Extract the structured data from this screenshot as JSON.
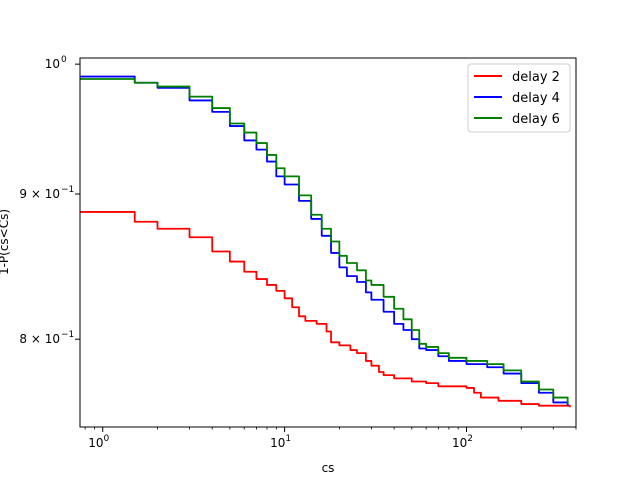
{
  "chart_data": {
    "type": "line",
    "title": "",
    "xlabel": "cs",
    "ylabel": "1-P(cs<Cs)",
    "xscale": "log",
    "yscale": "log",
    "xlim": [
      0.75,
      400
    ],
    "ylim": [
      0.745,
      1.005
    ],
    "xticks": [
      {
        "value": 1,
        "base": "10",
        "exp": "0"
      },
      {
        "value": 10,
        "base": "10",
        "exp": "1"
      },
      {
        "value": 100,
        "base": "10",
        "exp": "2"
      }
    ],
    "yticks": [
      {
        "value": 1.0,
        "mant": "",
        "base": "10",
        "exp": "0"
      },
      {
        "value": 0.9,
        "mant": "9 × ",
        "base": "10",
        "exp": "−1"
      },
      {
        "value": 0.8,
        "mant": "8 × ",
        "base": "10",
        "exp": "−1"
      }
    ],
    "legend": "top-right",
    "series": [
      {
        "name": "delay 2",
        "color": "#ff0000",
        "points": [
          [
            0.75,
            0.887
          ],
          [
            1,
            0.887
          ],
          [
            1.5,
            0.88
          ],
          [
            2,
            0.875
          ],
          [
            3,
            0.869
          ],
          [
            4,
            0.859
          ],
          [
            5,
            0.852
          ],
          [
            6,
            0.845
          ],
          [
            7,
            0.84
          ],
          [
            8,
            0.836
          ],
          [
            9,
            0.832
          ],
          [
            10,
            0.827
          ],
          [
            11,
            0.821
          ],
          [
            12,
            0.815
          ],
          [
            13,
            0.812
          ],
          [
            15,
            0.81
          ],
          [
            17,
            0.805
          ],
          [
            18,
            0.798
          ],
          [
            20,
            0.796
          ],
          [
            23,
            0.793
          ],
          [
            25,
            0.791
          ],
          [
            28,
            0.786
          ],
          [
            30,
            0.783
          ],
          [
            33,
            0.779
          ],
          [
            35,
            0.777
          ],
          [
            40,
            0.775
          ],
          [
            50,
            0.773
          ],
          [
            60,
            0.772
          ],
          [
            70,
            0.77
          ],
          [
            100,
            0.769
          ],
          [
            110,
            0.766
          ],
          [
            120,
            0.763
          ],
          [
            150,
            0.761
          ],
          [
            200,
            0.759
          ],
          [
            250,
            0.758
          ],
          [
            300,
            0.758
          ],
          [
            370,
            0.757
          ]
        ]
      },
      {
        "name": "delay 4",
        "color": "#0000ff",
        "points": [
          [
            0.75,
            0.99
          ],
          [
            1,
            0.99
          ],
          [
            1.5,
            0.985
          ],
          [
            2,
            0.981
          ],
          [
            3,
            0.971
          ],
          [
            4,
            0.962
          ],
          [
            5,
            0.951
          ],
          [
            6,
            0.94
          ],
          [
            7,
            0.933
          ],
          [
            8,
            0.924
          ],
          [
            9,
            0.913
          ],
          [
            10,
            0.907
          ],
          [
            12,
            0.895
          ],
          [
            14,
            0.882
          ],
          [
            16,
            0.87
          ],
          [
            18,
            0.858
          ],
          [
            20,
            0.848
          ],
          [
            22,
            0.842
          ],
          [
            25,
            0.838
          ],
          [
            28,
            0.831
          ],
          [
            30,
            0.826
          ],
          [
            35,
            0.818
          ],
          [
            40,
            0.81
          ],
          [
            45,
            0.806
          ],
          [
            50,
            0.8
          ],
          [
            55,
            0.794
          ],
          [
            60,
            0.793
          ],
          [
            70,
            0.789
          ],
          [
            80,
            0.786
          ],
          [
            100,
            0.784
          ],
          [
            130,
            0.782
          ],
          [
            160,
            0.778
          ],
          [
            200,
            0.772
          ],
          [
            250,
            0.766
          ],
          [
            300,
            0.76
          ],
          [
            360,
            0.758
          ]
        ]
      },
      {
        "name": "delay 6",
        "color": "#008000",
        "points": [
          [
            0.75,
            0.988
          ],
          [
            1,
            0.988
          ],
          [
            1.5,
            0.985
          ],
          [
            2,
            0.982
          ],
          [
            3,
            0.974
          ],
          [
            4,
            0.965
          ],
          [
            5,
            0.953
          ],
          [
            6,
            0.946
          ],
          [
            7,
            0.938
          ],
          [
            8,
            0.929
          ],
          [
            9,
            0.919
          ],
          [
            10,
            0.913
          ],
          [
            12,
            0.899
          ],
          [
            14,
            0.885
          ],
          [
            16,
            0.875
          ],
          [
            18,
            0.866
          ],
          [
            20,
            0.856
          ],
          [
            22,
            0.851
          ],
          [
            25,
            0.846
          ],
          [
            28,
            0.839
          ],
          [
            30,
            0.836
          ],
          [
            35,
            0.828
          ],
          [
            40,
            0.82
          ],
          [
            45,
            0.813
          ],
          [
            50,
            0.806
          ],
          [
            55,
            0.797
          ],
          [
            60,
            0.795
          ],
          [
            70,
            0.791
          ],
          [
            80,
            0.788
          ],
          [
            100,
            0.786
          ],
          [
            130,
            0.784
          ],
          [
            160,
            0.78
          ],
          [
            200,
            0.773
          ],
          [
            250,
            0.768
          ],
          [
            300,
            0.763
          ],
          [
            360,
            0.759
          ]
        ]
      }
    ]
  }
}
